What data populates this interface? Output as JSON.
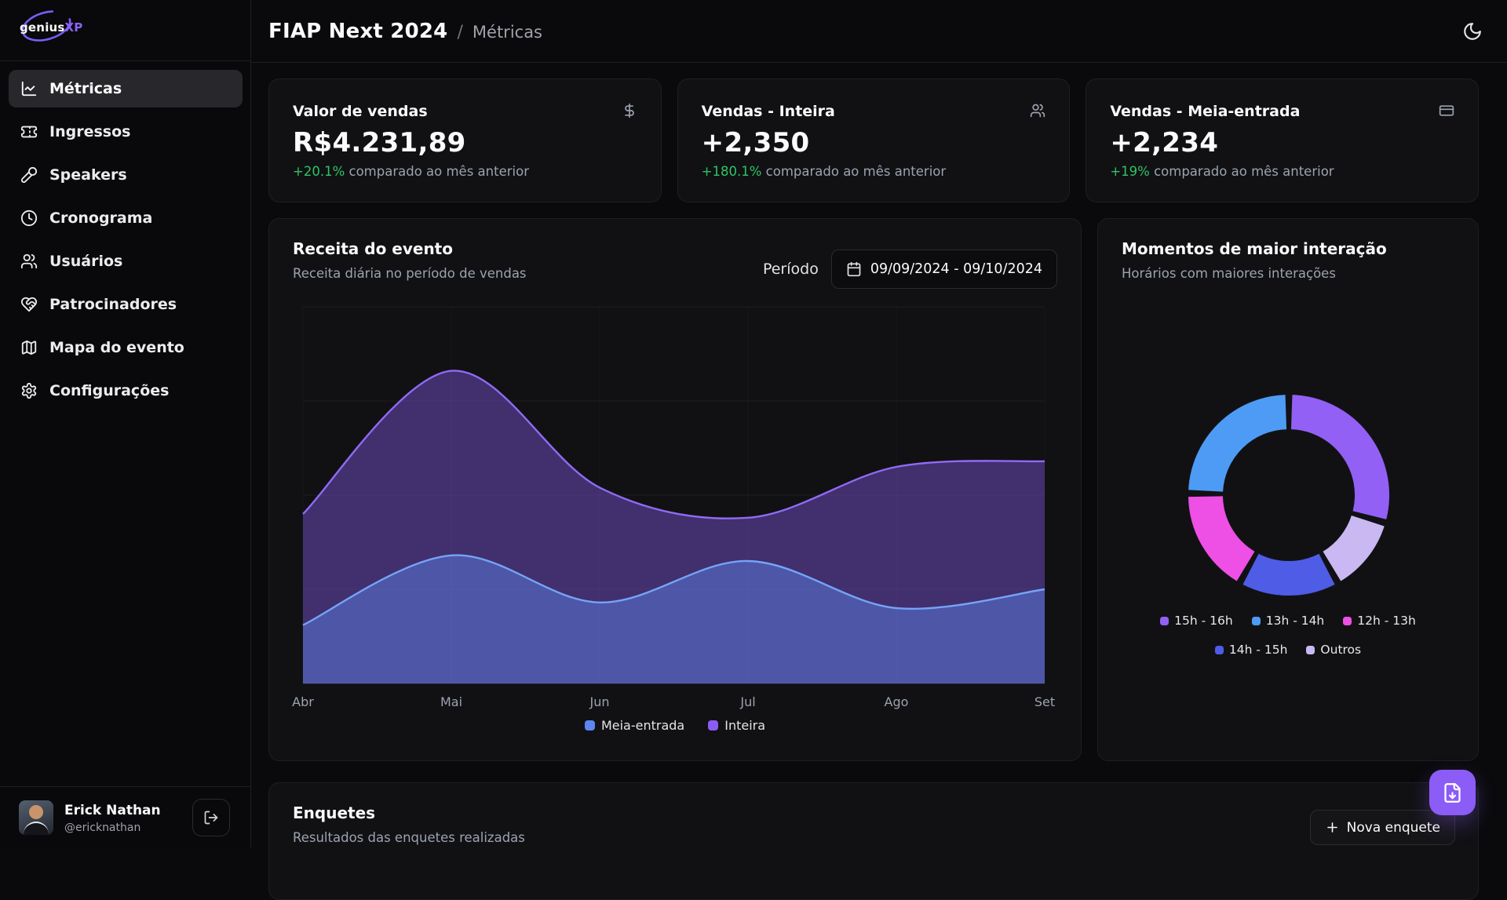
{
  "sidebar": {
    "brand": {
      "left": "genius",
      "right": "XP",
      "swoosh_color": "#7c5cfa"
    },
    "items": [
      {
        "label": "Métricas",
        "icon": "chart-line",
        "active": true
      },
      {
        "label": "Ingressos",
        "icon": "ticket",
        "active": false
      },
      {
        "label": "Speakers",
        "icon": "mic",
        "active": false
      },
      {
        "label": "Cronograma",
        "icon": "clock",
        "active": false
      },
      {
        "label": "Usuários",
        "icon": "users",
        "active": false
      },
      {
        "label": "Patrocinadores",
        "icon": "heart-handshake",
        "active": false
      },
      {
        "label": "Mapa do evento",
        "icon": "map",
        "active": false
      },
      {
        "label": "Configurações",
        "icon": "settings",
        "active": false
      }
    ],
    "user": {
      "name": "Erick Nathan",
      "handle": "@ericknathan",
      "logout_icon": "log-out"
    }
  },
  "header": {
    "title": "FIAP Next 2024",
    "separator": "/",
    "section": "Métricas",
    "theme_icon": "moon"
  },
  "stats": [
    {
      "title": "Valor de vendas",
      "icon": "dollar-sign",
      "value": "R$4.231,89",
      "delta": "+20.1%",
      "delta_text": "comparado ao mês anterior"
    },
    {
      "title": "Vendas - Inteira",
      "icon": "users",
      "value": "+2,350",
      "delta": "+180.1%",
      "delta_text": "comparado ao mês anterior"
    },
    {
      "title": "Vendas - Meia-entrada",
      "icon": "credit-card",
      "value": "+2,234",
      "delta": "+19%",
      "delta_text": "comparado ao mês anterior"
    }
  ],
  "cards": {
    "revenue": {
      "period_label": "Período",
      "period_value": "09/09/2024 - 09/10/2024",
      "period_icon": "calendar"
    },
    "polls": {
      "title": "Enquetes",
      "subtitle": "Resultados das enquetes realizadas",
      "new_button_label": "Nova enquete",
      "new_button_icon": "plus"
    }
  },
  "fab": {
    "icon": "file-down",
    "color": "#8b5cf6"
  },
  "colors": {
    "accent": "#8b5cf6",
    "positive": "#2fc463",
    "muted": "#9ca3af",
    "grid": "rgba(255,255,255,0.05)"
  },
  "chart_data": [
    {
      "id": "revenue-area",
      "type": "area",
      "title": "Receita do evento",
      "subtitle": "Receita diária no período de vendas",
      "x_categories": [
        "Abr",
        "Mai",
        "Jun",
        "Jul",
        "Ago",
        "Set"
      ],
      "ylim": [
        0,
        100
      ],
      "y_axis_labels_shown": false,
      "grid": "faint horizontal lines at 25/50/75/100 and vertical lines at each month",
      "series": [
        {
          "name": "Inteira",
          "color": "#8a5cf4",
          "line_color": "#8f6bf5",
          "fill": "rgba(139,92,246,0.40)",
          "values": [
            45,
            83,
            52,
            44,
            57.5,
            59
          ]
        },
        {
          "name": "Meia-entrada",
          "color": "#5d87f0",
          "line_color": "#74a4f7",
          "fill": "rgba(93,135,240,0.45)",
          "values": [
            15.5,
            34,
            21.5,
            32.5,
            20,
            25
          ]
        }
      ],
      "legend": [
        "Meia-entrada",
        "Inteira"
      ],
      "legend_position": "bottom-center"
    },
    {
      "id": "interaction-donut",
      "type": "donut",
      "title": "Momentos de maior interação",
      "subtitle": "Horários com maiores interações",
      "segments": [
        {
          "label": "15h - 16h",
          "value": 30,
          "color": "#9260f4"
        },
        {
          "label": "13h - 14h",
          "value": 25,
          "color": "#4d9bf5"
        },
        {
          "label": "12h - 13h",
          "value": 17,
          "color": "#ee4fe4"
        },
        {
          "label": "14h - 15h",
          "value": 16,
          "color": "#4e5ce6"
        },
        {
          "label": "Outros",
          "value": 12,
          "color": "#c9b8f2"
        }
      ],
      "draw_order_clockwise_from_top": [
        "15h - 16h",
        "Outros",
        "14h - 15h",
        "12h - 13h",
        "13h - 14h"
      ],
      "gap_degrees": 4,
      "legend_rows": [
        [
          "15h - 16h",
          "13h - 14h",
          "12h - 13h"
        ],
        [
          "14h - 15h",
          "Outros"
        ]
      ],
      "legend_position": "bottom-center"
    }
  ]
}
